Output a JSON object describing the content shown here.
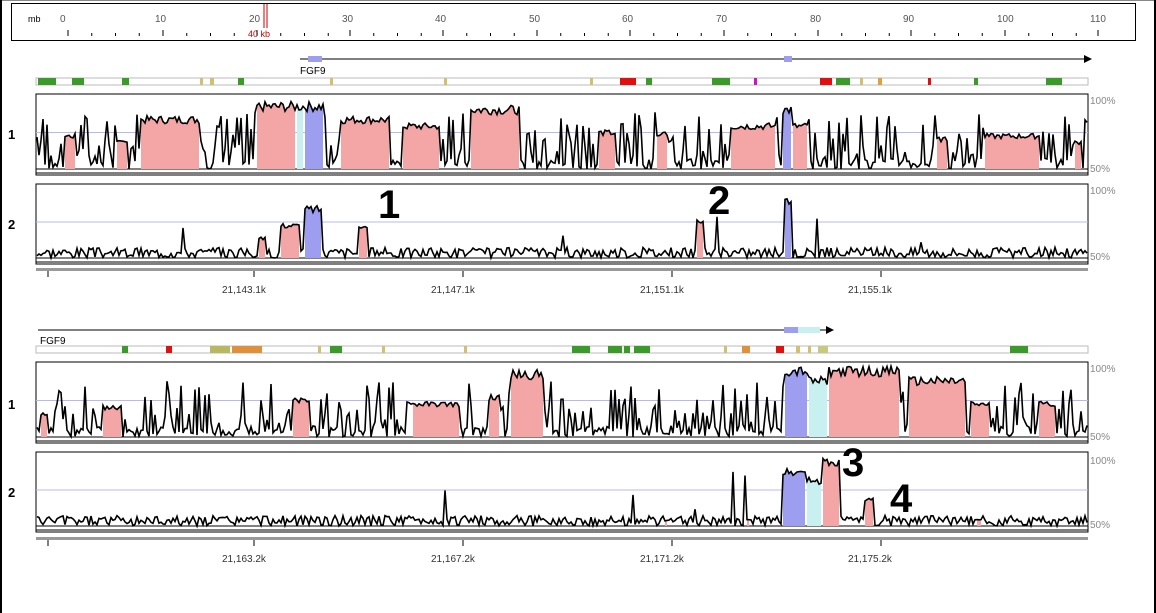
{
  "ruler": {
    "unit_label": "mb",
    "ticks": [
      "0",
      "10",
      "20",
      "30",
      "40",
      "50",
      "60",
      "70",
      "80",
      "90",
      "100",
      "110"
    ],
    "window_label": "40 kb"
  },
  "panels": [
    {
      "gene_label": "FGF9",
      "tracks": [
        {
          "label": "1",
          "scale_top": "100%",
          "scale_bottom": "50%"
        },
        {
          "label": "2",
          "scale_top": "100%",
          "scale_bottom": "50%"
        }
      ],
      "axis_ticks": [
        "21,143.1k",
        "21,147.1k",
        "21,151.1k",
        "21,155.1k"
      ],
      "annotations": [
        "1",
        "2"
      ]
    },
    {
      "gene_label": "FGF9",
      "tracks": [
        {
          "label": "1",
          "scale_top": "100%",
          "scale_bottom": "50%"
        },
        {
          "label": "2",
          "scale_top": "100%",
          "scale_bottom": "50%"
        }
      ],
      "axis_ticks": [
        "21,163.2k",
        "21,167.2k",
        "21,171.2k",
        "21,175.2k"
      ],
      "annotations": [
        "3",
        "4"
      ]
    }
  ],
  "colors": {
    "conserved_noncoding": "#f4a6a6",
    "exon": "#9e9ef0",
    "utr": "#c8f0f0",
    "gridline": "#b8b8ee",
    "ruler_marker": "#cc0000"
  }
}
